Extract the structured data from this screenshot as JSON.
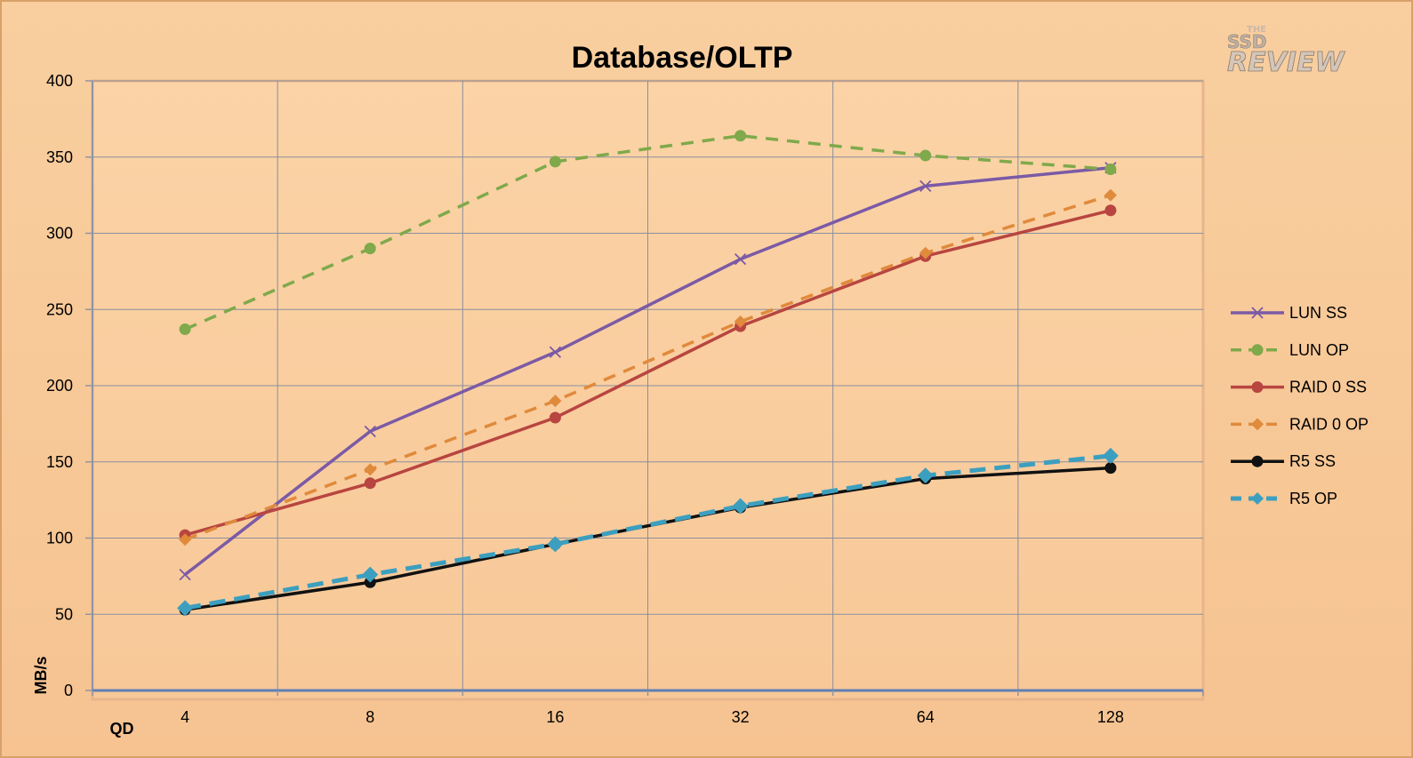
{
  "logo": {
    "line1": "THE",
    "line2": "SSD",
    "line3": "REVIEW"
  },
  "chart_data": {
    "type": "line",
    "title": "Database/OLTP",
    "xlabel": "QD",
    "ylabel": "MB/s",
    "categories": [
      "4",
      "8",
      "16",
      "32",
      "64",
      "128"
    ],
    "ylim": [
      0,
      400
    ],
    "yticks": [
      0,
      50,
      100,
      150,
      200,
      250,
      300,
      350,
      400
    ],
    "grid": true,
    "legend_position": "right",
    "series": [
      {
        "name": "LUN SS",
        "values": [
          76,
          170,
          222,
          283,
          331,
          343
        ],
        "color": "#7b5aa6",
        "dash": "solid",
        "marker": "x"
      },
      {
        "name": "LUN OP",
        "values": [
          237,
          290,
          347,
          364,
          351,
          342
        ],
        "color": "#7fa94b",
        "dash": "dashed",
        "marker": "circle"
      },
      {
        "name": "RAID 0 SS",
        "values": [
          102,
          136,
          179,
          239,
          285,
          315
        ],
        "color": "#b84540",
        "dash": "solid",
        "marker": "circle"
      },
      {
        "name": "RAID 0 OP",
        "values": [
          99,
          145,
          190,
          242,
          287,
          325
        ],
        "color": "#e08a3c",
        "dash": "dashed",
        "marker": "diamond"
      },
      {
        "name": "R5 SS",
        "values": [
          53,
          71,
          96,
          120,
          139,
          146
        ],
        "color": "#111111",
        "dash": "solid",
        "marker": "circle"
      },
      {
        "name": "R5 OP",
        "values": [
          54,
          76,
          96,
          121,
          141,
          154
        ],
        "color": "#3c9fbf",
        "dash": "dashed",
        "marker": "diamond"
      }
    ]
  }
}
